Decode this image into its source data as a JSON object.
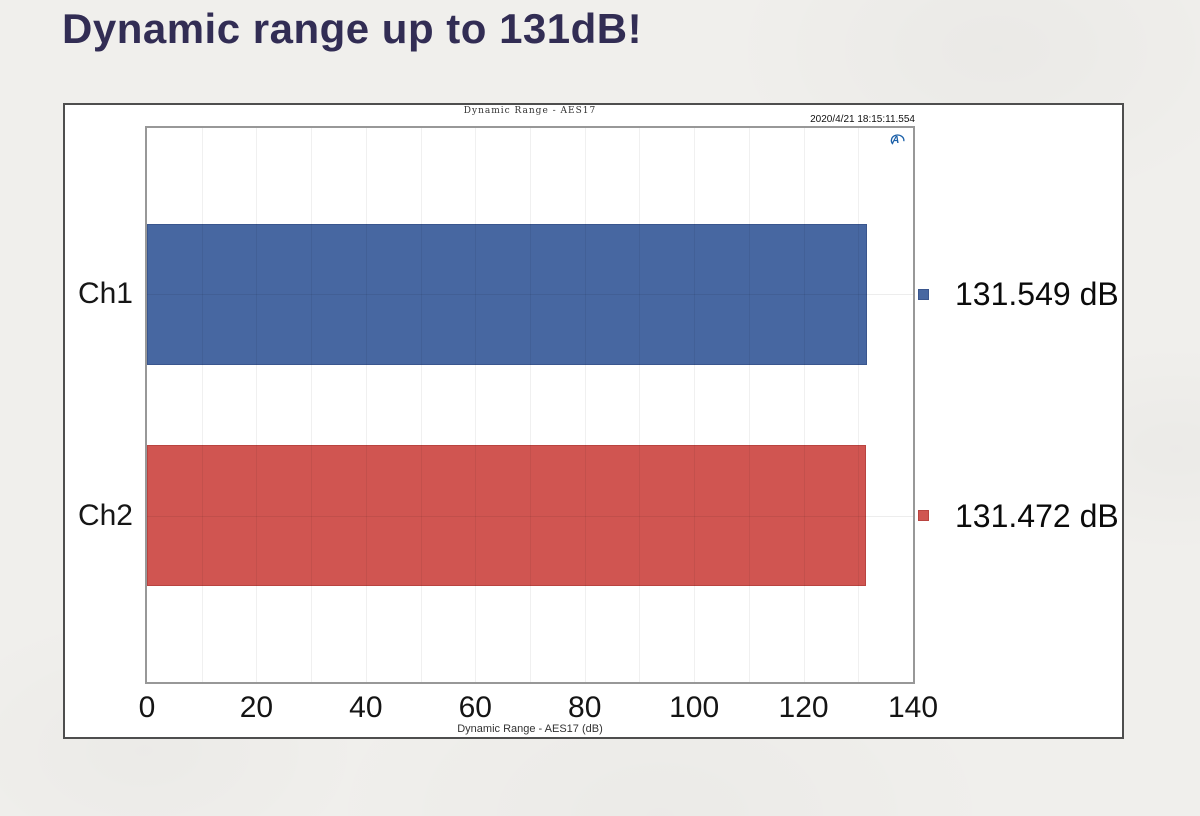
{
  "page": {
    "title": "Dynamic range up to 131dB!"
  },
  "colors": {
    "page_title": "#322d54",
    "background": "#f0efec",
    "bar_blue": "#4767a1",
    "bar_blue_border": "#3a568e",
    "bar_red": "#d05551",
    "bar_red_border": "#b94440",
    "logo_blue": "#1a5fa8"
  },
  "chart": {
    "header_title": "Dynamic Range - AES17",
    "timestamp": "2020/4/21 18:15:11.554",
    "xlabel": "Dynamic Range - AES17 (dB)"
  },
  "chart_data": {
    "type": "bar",
    "orientation": "horizontal",
    "title": "Dynamic Range - AES17",
    "xlabel": "Dynamic Range - AES17 (dB)",
    "categories": [
      "Ch1",
      "Ch2"
    ],
    "values": [
      131.549,
      131.472
    ],
    "value_labels": [
      "131.549 dB",
      "131.472 dB"
    ],
    "series_colors": [
      "#4767a1",
      "#d05551"
    ],
    "series_border_colors": [
      "#3a568e",
      "#b94440"
    ],
    "xlim": [
      0,
      140
    ],
    "x_ticks": [
      0,
      20,
      40,
      60,
      80,
      100,
      120,
      140
    ],
    "minor_grid_step": 10,
    "grid": true,
    "legend": "value markers right of plot"
  }
}
